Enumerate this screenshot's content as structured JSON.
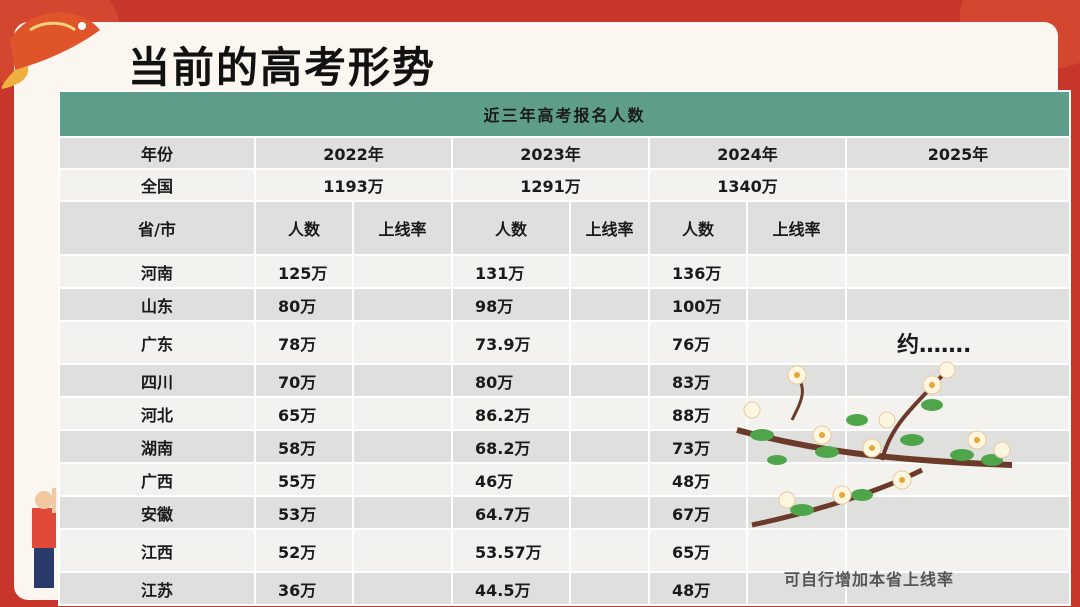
{
  "page": {
    "title": "当前的高考形势",
    "note": "可自行增加本省上线率"
  },
  "table": {
    "header": "近三年高考报名人数",
    "year_label": "年份",
    "years": [
      "2022年",
      "2023年",
      "2024年",
      "2025年"
    ],
    "nation_label": "全国",
    "nation_values": [
      "1193万",
      "1291万",
      "1340万",
      ""
    ],
    "sub_header": {
      "region": "省/市",
      "count": "人数",
      "rate": "上线率"
    },
    "rows": [
      {
        "region": "河南",
        "v": [
          "125万",
          "131万",
          "136万"
        ]
      },
      {
        "region": "山东",
        "v": [
          "80万",
          "98万",
          "100万"
        ]
      },
      {
        "region": "广东",
        "v": [
          "78万",
          "73.9万",
          "76万"
        ],
        "y2025": "约……."
      },
      {
        "region": "四川",
        "v": [
          "70万",
          "80万",
          "83万"
        ]
      },
      {
        "region": "河北",
        "v": [
          "65万",
          "86.2万",
          "88万"
        ]
      },
      {
        "region": "湖南",
        "v": [
          "58万",
          "68.2万",
          "73万"
        ]
      },
      {
        "region": "广西",
        "v": [
          "55万",
          "46万",
          "48万"
        ]
      },
      {
        "region": "安徽",
        "v": [
          "53万",
          "64.7万",
          "67万"
        ]
      },
      {
        "region": "江西",
        "v": [
          "52万",
          "53.57万",
          "65万"
        ]
      },
      {
        "region": "江苏",
        "v": [
          "36万",
          "44.5万",
          "48万"
        ]
      }
    ]
  },
  "colors": {
    "background": "#c8352b",
    "header": "#5f9d8b",
    "highlight": "#e02020"
  }
}
